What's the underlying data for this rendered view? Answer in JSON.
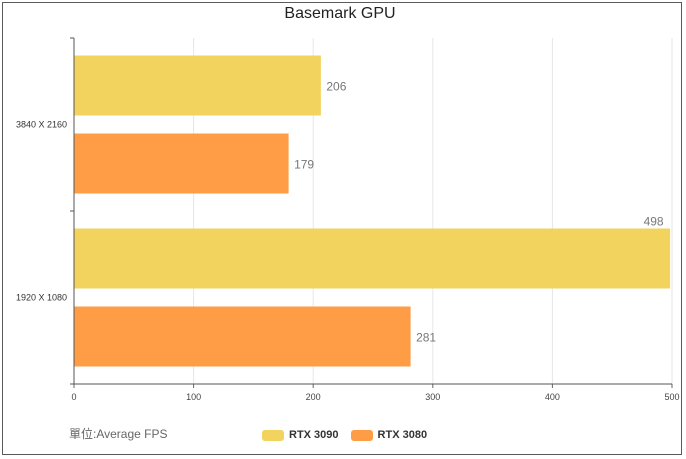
{
  "chart_data": {
    "type": "bar",
    "orientation": "horizontal",
    "title": "Basemark GPU",
    "categories": [
      "3840 X 2160",
      "1920 X 1080"
    ],
    "series": [
      {
        "name": "RTX 3090",
        "values": [
          206,
          498
        ],
        "color": "#f2d35e"
      },
      {
        "name": "RTX 3080",
        "values": [
          179,
          281
        ],
        "color": "#fe9d45"
      }
    ],
    "xlim": [
      0,
      500
    ],
    "xticks": [
      0,
      100,
      200,
      300,
      400,
      500
    ],
    "grid": true,
    "legend_position": "bottom-center",
    "unit_label": "單位:Average FPS"
  }
}
